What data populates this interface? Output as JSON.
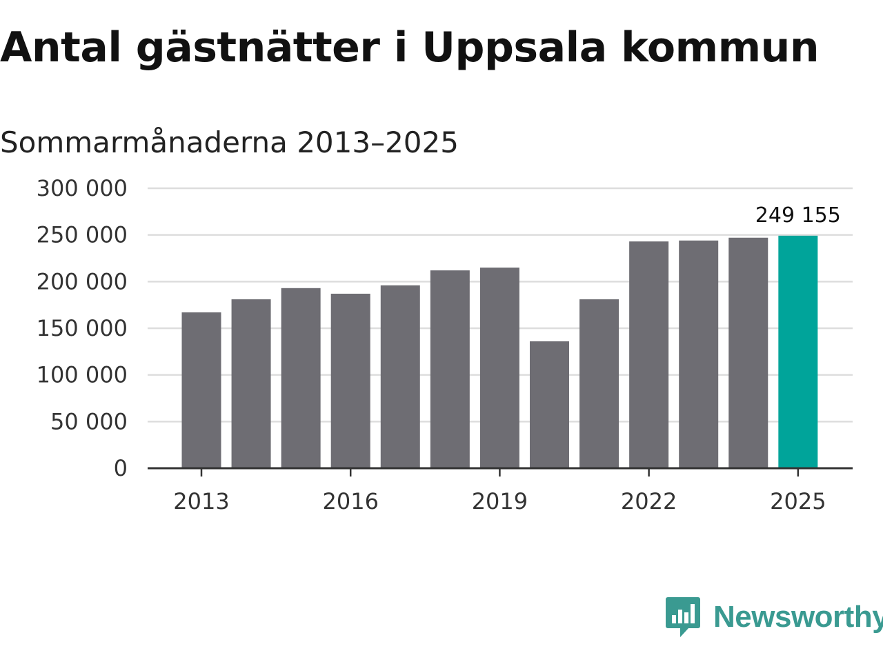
{
  "title": "Antal gästnätter i Uppsala kommun",
  "subtitle": "Sommarmånaderna 2013–2025",
  "colors": {
    "bar": "#6e6d73",
    "highlight": "#00a49a",
    "grid": "#dddddd",
    "axis": "#333333",
    "brand": "#3a9a91"
  },
  "chart_data": {
    "type": "bar",
    "title": "Antal gästnätter i Uppsala kommun",
    "subtitle": "Sommarmånaderna 2013–2025",
    "xlabel": "",
    "ylabel": "",
    "categories": [
      2013,
      2014,
      2015,
      2016,
      2017,
      2018,
      2019,
      2020,
      2021,
      2022,
      2023,
      2024,
      2025
    ],
    "values": [
      167000,
      181000,
      193000,
      187000,
      196000,
      212000,
      215000,
      136000,
      181000,
      243000,
      244000,
      247000,
      249155
    ],
    "ylim": [
      0,
      300000
    ],
    "yticks": [
      0,
      50000,
      100000,
      150000,
      200000,
      250000,
      300000
    ],
    "ytick_labels": [
      "0",
      "50 000",
      "100 000",
      "150 000",
      "200 000",
      "250 000",
      "300 000"
    ],
    "xticks": [
      2013,
      2016,
      2019,
      2022,
      2025
    ],
    "xtick_labels": [
      "2013",
      "2016",
      "2019",
      "2022",
      "2025"
    ],
    "highlight_category": 2025,
    "data_label": {
      "category": 2025,
      "text": "249 155"
    },
    "grid": true,
    "legend": "none"
  },
  "logo": {
    "text": "Newsworthy",
    "icon": "bar-chart-speech-bubble-icon"
  }
}
